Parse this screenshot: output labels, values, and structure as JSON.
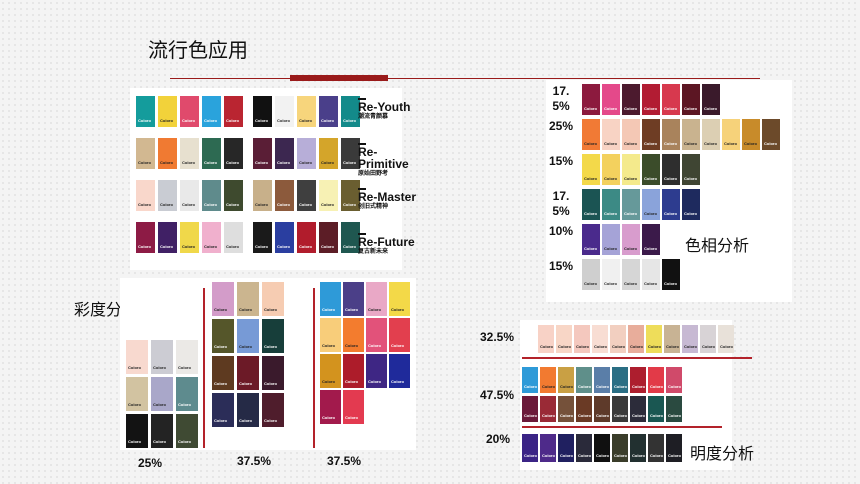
{
  "title": "流行色应用",
  "chip_brand": "Coloro",
  "legend": [
    {
      "en": "Re-Youth",
      "cn": "潮流青颜慕"
    },
    {
      "en": "Re-Primitive",
      "cn": "原始田野考"
    },
    {
      "en": "Re-Master",
      "cn": "创旧式精神"
    },
    {
      "en": "Re-Future",
      "cn": "复古新未来"
    }
  ],
  "sections": {
    "saturation": "彩度分析",
    "hue": "色相分析",
    "value": "明度分析"
  },
  "saturation_pcts": [
    "25%",
    "37.5%",
    "37.5%"
  ],
  "hue_pcts": [
    "17.5%",
    "25%",
    "15%",
    "17.5%",
    "10%",
    "15%"
  ],
  "value_pcts": [
    "32.5%",
    "47.5%",
    "20%"
  ],
  "palette": {
    "top_rows": [
      [
        "#149c9c",
        "#f2d23a",
        "#e04a6c",
        "#2aa3dc",
        "#ba2531",
        "#111111",
        "#f2f2f2",
        "#f7d57c",
        "#4a3f8a",
        "#138a8a"
      ],
      [
        "#d2b891",
        "#f07a32",
        "#e7e0cf",
        "#2d6a52",
        "#272727",
        "#5a1e36",
        "#3c2750",
        "#b7aed8",
        "#d4a52a",
        "#3a3a3a"
      ],
      [
        "#f9d7cb",
        "#c9ccd3",
        "#e9e9e9",
        "#5f8b8c",
        "#3e4a2e",
        "#c8b08a",
        "#8c5a3c",
        "#3f3f3f",
        "#f7f1b4",
        "#6a5e30"
      ],
      [
        "#8d1b45",
        "#402065",
        "#f0d84a",
        "#f0b0cd",
        "#dedede",
        "#1a1a1a",
        "#2a3ea0",
        "#b11c2c",
        "#5c1d26",
        "#1f5750"
      ]
    ],
    "sat_col1": [
      "#f8d9cf",
      "#ccccd3",
      "#ebe9e6",
      "#d2c3a1",
      "#a9a7c9",
      "#5e8b8e",
      "#131313",
      "#232323",
      "#3f4a33"
    ],
    "sat_col2": [
      "#d39cc9",
      "#cbb58f",
      "#f6ccb2",
      "#55562a",
      "#779ad6",
      "#173e3a",
      "#5e3a20",
      "#6c1a27",
      "#3a1a2c",
      "#2b2d58",
      "#252a46",
      "#4f1d2c"
    ],
    "sat_col3": [
      "#2e9ad8",
      "#4b3f88",
      "#e9a8c6",
      "#f3d948",
      "#f8cd7a",
      "#f37c2e",
      "#e2527a",
      "#e23f4e",
      "#d3931e",
      "#ad1c2a",
      "#3e2684",
      "#1f2a9b",
      "#a21a4c",
      "#e33a50"
    ],
    "hue_rows": [
      [
        "#8c1a3e",
        "#e4498a",
        "#4c1a2e",
        "#b21c33",
        "#d7394e",
        "#5c1623",
        "#3a1a2b"
      ],
      [
        "#f17a35",
        "#f8d3c4",
        "#f4c8b5",
        "#6e3d24",
        "#a9835c",
        "#c9b38f",
        "#dccfb3",
        "#f6d27a",
        "#c88b2a",
        "#6c4a2a"
      ],
      [
        "#f3d94a",
        "#f3d15e",
        "#f4ea8c",
        "#3b4c2a",
        "#2e2e2e",
        "#3f4533"
      ],
      [
        "#1b5453",
        "#3c8a85",
        "#66999a",
        "#8aa3da",
        "#2d3c8f",
        "#1e2a5e"
      ],
      [
        "#4a2a8c",
        "#a5a3d7",
        "#d89ccd",
        "#3b1a4a"
      ],
      [
        "#cfcfcf",
        "#f0f0f0",
        "#d6d6d6",
        "#e6e6e6",
        "#111111"
      ]
    ],
    "val_row1": [
      "#f8d2c6",
      "#f8d6c6",
      "#f4c8be",
      "#f8ddd3",
      "#f2cfc0",
      "#e8ad9b",
      "#eedd5a",
      "#c8b394",
      "#c7b9d3",
      "#d8d3d6",
      "#e8e1d9"
    ],
    "val_row2": [
      "#2e9ad8",
      "#f27a30",
      "#c9a044",
      "#5f8f8a",
      "#5a7ea8",
      "#2a6e84",
      "#ad1e2e",
      "#e23a48",
      "#d04a6a"
    ],
    "val_row3": [
      "#6b1a3a",
      "#9a2a36",
      "#75513a",
      "#6a3a25",
      "#5e3a2a",
      "#3a3a3a",
      "#2c2c3a",
      "#1a5752",
      "#2a4a40"
    ],
    "val_row4": [
      "#3b2486",
      "#4e2a8a",
      "#202060",
      "#2a2a3a",
      "#101010",
      "#3a3d2a",
      "#223030",
      "#333",
      "#1e1e24"
    ]
  }
}
